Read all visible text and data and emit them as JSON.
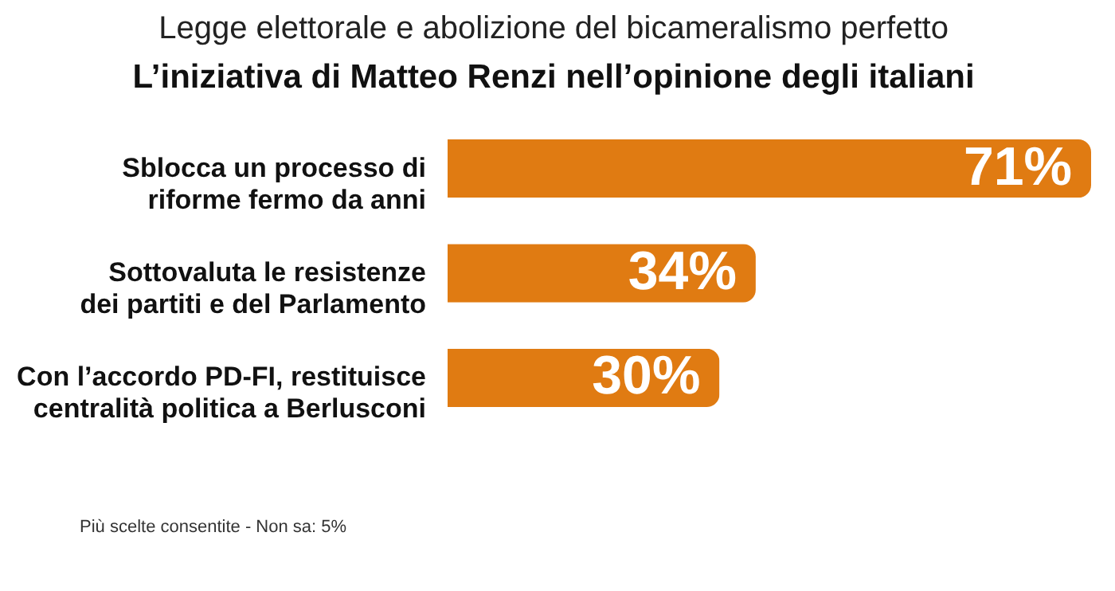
{
  "chart_data": {
    "type": "bar",
    "orientation": "horizontal",
    "title": "Legge elettorale e abolizione del bicameralismo perfetto",
    "subtitle": "L’iniziativa di Matteo Renzi nell’opinione degli italiani",
    "categories": [
      "Sblocca un processo di riforme fermo da anni",
      "Sottovaluta le resistenze dei partiti e del Parlamento",
      "Con l’accordo PD-FI, restituisce centralità politica a Berlusconi"
    ],
    "values": [
      71,
      34,
      30
    ],
    "value_labels": [
      "71%",
      "34%",
      "30%"
    ],
    "color": "#e07b12",
    "annotations": [
      "Più scelte consentite - Non sa: 5%"
    ]
  }
}
